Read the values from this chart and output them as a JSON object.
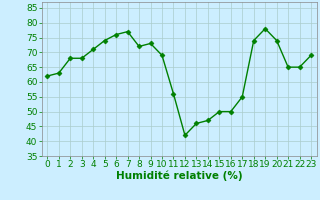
{
  "x": [
    0,
    1,
    2,
    3,
    4,
    5,
    6,
    7,
    8,
    9,
    10,
    11,
    12,
    13,
    14,
    15,
    16,
    17,
    18,
    19,
    20,
    21,
    22,
    23
  ],
  "y": [
    62,
    63,
    68,
    68,
    71,
    74,
    76,
    77,
    72,
    73,
    69,
    56,
    42,
    46,
    47,
    50,
    50,
    55,
    74,
    78,
    74,
    65,
    65,
    69
  ],
  "line_color": "#008000",
  "marker": "D",
  "marker_size": 2.5,
  "bg_color": "#cceeff",
  "grid_color": "#aacccc",
  "xlabel": "Humidité relative (%)",
  "xlabel_color": "#008000",
  "tick_color": "#008000",
  "spine_color": "#888888",
  "xlim": [
    -0.5,
    23.5
  ],
  "ylim": [
    35,
    87
  ],
  "yticks": [
    35,
    40,
    45,
    50,
    55,
    60,
    65,
    70,
    75,
    80,
    85
  ],
  "xticks": [
    0,
    1,
    2,
    3,
    4,
    5,
    6,
    7,
    8,
    9,
    10,
    11,
    12,
    13,
    14,
    15,
    16,
    17,
    18,
    19,
    20,
    21,
    22,
    23
  ],
  "tick_fontsize": 6.5,
  "xlabel_fontsize": 7.5,
  "line_width": 1.0
}
